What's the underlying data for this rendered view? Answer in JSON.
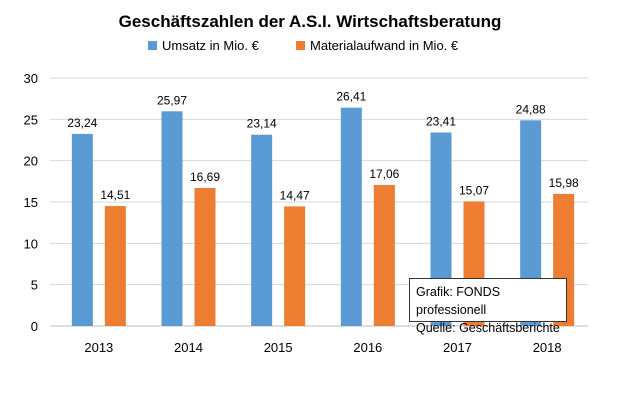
{
  "chart_data": {
    "type": "bar",
    "title": "Geschäftszahlen  der A.S.I. Wirtschaftsberatung",
    "categories": [
      "2013",
      "2014",
      "2015",
      "2016",
      "2017",
      "2018"
    ],
    "series": [
      {
        "name": "Umsatz in Mio. €",
        "color": "#5b9bd5",
        "values": [
          23.24,
          25.97,
          23.14,
          26.41,
          23.41,
          24.88
        ],
        "labels": [
          "23,24",
          "25,97",
          "23,14",
          "26,41",
          "23,41",
          "24,88"
        ]
      },
      {
        "name": "Materialaufwand in Mio. €",
        "color": "#ed7d31",
        "values": [
          14.51,
          16.69,
          14.47,
          17.06,
          15.07,
          15.98
        ],
        "labels": [
          "14,51",
          "16,69",
          "14,47",
          "17,06",
          "15,07",
          "15,98"
        ]
      }
    ],
    "ylim": [
      0,
      30
    ],
    "yticks": [
      0,
      5,
      10,
      15,
      20,
      25,
      30
    ],
    "grid": true,
    "legend_position": "top-center",
    "xlabel": "",
    "ylabel": ""
  },
  "note": {
    "line1": "Grafik: FONDS professionell",
    "line2": "Quelle: Geschäftsberichte"
  }
}
